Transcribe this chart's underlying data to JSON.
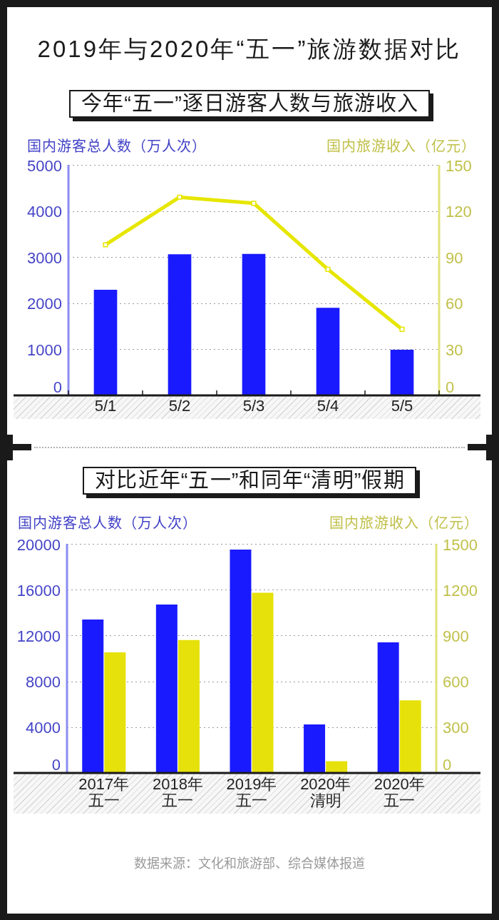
{
  "chart_data": [
    {
      "type": "bar",
      "title": "2019年与2020年“五一”旅游数据对比",
      "subtitle": "今年“五一”逐日游客人数与旅游收入",
      "ylabel": "国内游客总人数（万人次）",
      "y2label": "国内旅游收入（亿元）",
      "categories": [
        "5/1",
        "5/2",
        "5/3",
        "5/4",
        "5/5"
      ],
      "series": [
        {
          "type": "bar",
          "color": "#1a1aff",
          "values": [
            2290,
            3060,
            3070,
            1900,
            990
          ]
        },
        {
          "type": "line",
          "axis": "y2",
          "color": "#e6e600",
          "values": [
            98,
            129,
            125,
            82,
            43
          ]
        }
      ],
      "ylim": [
        0,
        5000
      ],
      "yticks": [
        0,
        1000,
        2000,
        3000,
        4000,
        5000
      ],
      "y2lim": [
        0,
        150
      ],
      "y2ticks": [
        0,
        30,
        60,
        90,
        120,
        150
      ],
      "grid": "y",
      "marker": "square"
    },
    {
      "type": "bar",
      "subtitle": "对比近年“五一”和同年“清明”假期",
      "ylabel": "国内游客总人数（万人次）",
      "y2label": "国内旅游收入（亿元）",
      "categories": [
        "2017年五一",
        "2018年五一",
        "2019年五一",
        "2020年清明",
        "2020年五一"
      ],
      "series": [
        {
          "type": "bar",
          "color": "#1a1aff",
          "values": [
            13400,
            14700,
            19500,
            4230,
            11400
          ]
        },
        {
          "type": "bar",
          "axis": "y2",
          "color": "#e6e10a",
          "values": [
            790,
            870,
            1180,
            77,
            476
          ]
        }
      ],
      "ylim": [
        0,
        20000
      ],
      "yticks": [
        0,
        4000,
        8000,
        12000,
        16000,
        20000
      ],
      "y2lim": [
        0,
        1500
      ],
      "y2ticks": [
        0,
        300,
        600,
        900,
        1200,
        1500
      ],
      "grid": "y",
      "annotations": [
        "数据来源：文化和旅游部、综合媒体报道"
      ]
    }
  ]
}
